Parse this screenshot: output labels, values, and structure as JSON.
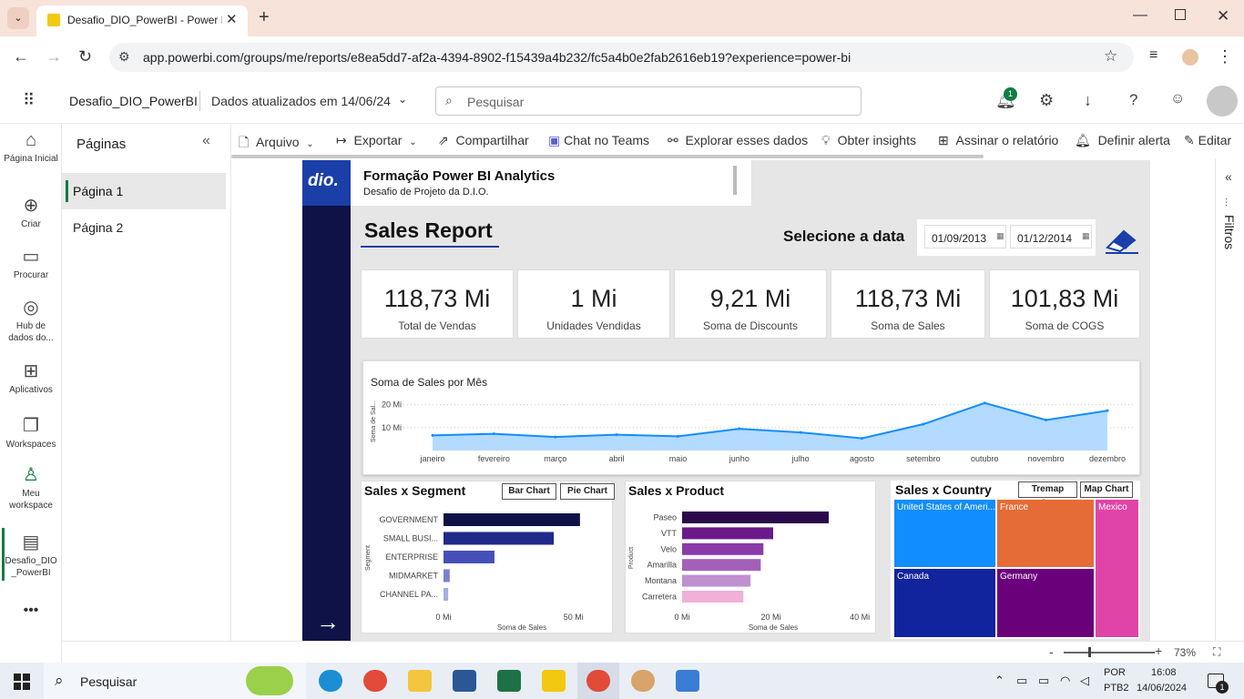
{
  "browser": {
    "tab_title": "Desafio_DIO_PowerBI - Power B",
    "url": "app.powerbi.com/groups/me/reports/e8ea5dd7-af2a-4394-8902-f15439a4b232/fc5a4b0e2fab2616eb19?experience=power-bi"
  },
  "header": {
    "report_name": "Desafio_DIO_PowerBI",
    "updated": "Dados atualizados em 14/06/24",
    "search_placeholder": "Pesquisar",
    "notif_count": "1"
  },
  "rail": [
    {
      "label": "Página Inicial",
      "icon": "home-icon"
    },
    {
      "label": "Criar",
      "icon": "create-icon"
    },
    {
      "label": "Procurar",
      "icon": "browse-icon"
    },
    {
      "label": "Hub de dados do...",
      "icon": "data-hub-icon"
    },
    {
      "label": "Aplicativos",
      "icon": "apps-icon"
    },
    {
      "label": "Workspaces",
      "icon": "workspaces-icon"
    },
    {
      "label": "Meu workspace",
      "icon": "my-workspace-icon"
    },
    {
      "label": "Desafio_DIO _PowerBI",
      "icon": "report-icon"
    }
  ],
  "pages": {
    "title": "Páginas",
    "items": [
      "Página 1",
      "Página 2"
    ]
  },
  "toolbar": {
    "arquivo": "Arquivo",
    "exportar": "Exportar",
    "compartilhar": "Compartilhar",
    "teams": "Chat no Teams",
    "explorar": "Explorar esses dados",
    "insights": "Obter insights",
    "assinar": "Assinar o relatório",
    "alerta": "Definir alerta",
    "editar": "Editar"
  },
  "filters_label": "Filtros",
  "report": {
    "brand": "dio.",
    "course_title": "Formação Power BI Analytics",
    "course_sub": "Desafio de Projeto da D.I.O.",
    "title": "Sales Report",
    "date_label": "Selecione a data",
    "date_from": "01/09/2013",
    "date_to": "01/12/2014",
    "kpis": [
      {
        "value": "118,73 Mi",
        "label": "Total de Vendas"
      },
      {
        "value": "1 Mi",
        "label": "Unidades Vendidas"
      },
      {
        "value": "9,21 Mi",
        "label": "Soma de Discounts"
      },
      {
        "value": "118,73 Mi",
        "label": "Soma de  Sales"
      },
      {
        "value": "101,83 Mi",
        "label": "Soma de COGS"
      }
    ],
    "segment_title": "Sales x Segment",
    "segment_btn1": "Bar Chart",
    "segment_btn2": "Pie Chart",
    "product_title": "Sales x Product",
    "country_title": "Sales x Country",
    "country_btn1": "Tremap Chart",
    "country_btn2": "Map Chart"
  },
  "chart_data": [
    {
      "type": "area",
      "title": "Soma de Sales por Mês",
      "ylabel": "Soma de Sal...",
      "yticks": [
        "10 Mi",
        "20 Mi"
      ],
      "ylim": [
        0,
        25
      ],
      "categories": [
        "janeiro",
        "fevereiro",
        "março",
        "abril",
        "maio",
        "junho",
        "julho",
        "agosto",
        "setembro",
        "outubro",
        "novembro",
        "dezembro"
      ],
      "values": [
        6.6,
        7.3,
        5.9,
        6.9,
        6.2,
        9.5,
        7.9,
        5.3,
        11.5,
        20.7,
        13.3,
        17.4
      ],
      "color": "#118dff"
    },
    {
      "type": "bar",
      "orientation": "horizontal",
      "ylabel": "Segment",
      "xlabel": "Soma de Sales",
      "xticks": [
        "0 Mi",
        "50 Mi"
      ],
      "xlim": [
        0,
        55
      ],
      "categories": [
        "GOVERNMENT",
        "SMALL BUSI...",
        "ENTERPRISE",
        "MIDMARKET",
        "CHANNEL PA..."
      ],
      "values": [
        52.5,
        42.4,
        19.6,
        2.4,
        1.8
      ],
      "colors": [
        "#0e1246",
        "#1f2a8a",
        "#4650b8",
        "#7b82cf",
        "#a9aee2"
      ]
    },
    {
      "type": "bar",
      "orientation": "horizontal",
      "ylabel": "Product",
      "xlabel": "Soma de Sales",
      "xticks": [
        "0 Mi",
        "20 Mi",
        "40 Mi"
      ],
      "xlim": [
        0,
        41
      ],
      "categories": [
        "Paseo",
        "VTT",
        "Velo",
        "Amarilla",
        "Montana",
        "Carretera"
      ],
      "values": [
        33.0,
        20.5,
        18.3,
        17.7,
        15.4,
        13.8
      ],
      "colors": [
        "#2a0a4a",
        "#6a1a8a",
        "#8a3aa8",
        "#a460b8",
        "#c08fcf",
        "#f0b0d8"
      ]
    },
    {
      "type": "treemap",
      "labels": [
        "United States of Ameri...",
        "France",
        "Mexico",
        "Canada",
        "Germany"
      ],
      "values": [
        25.0,
        24.4,
        20.9,
        24.9,
        23.5
      ],
      "colors": [
        "#118dff",
        "#e66c37",
        "#e044a7",
        "#12239e",
        "#6b007b"
      ]
    }
  ],
  "status": {
    "zoom": "73%"
  },
  "taskbar": {
    "search": "Pesquisar",
    "lang1": "POR",
    "lang2": "PTB2",
    "time": "16:08",
    "date": "14/06/2024",
    "notif": "1"
  }
}
